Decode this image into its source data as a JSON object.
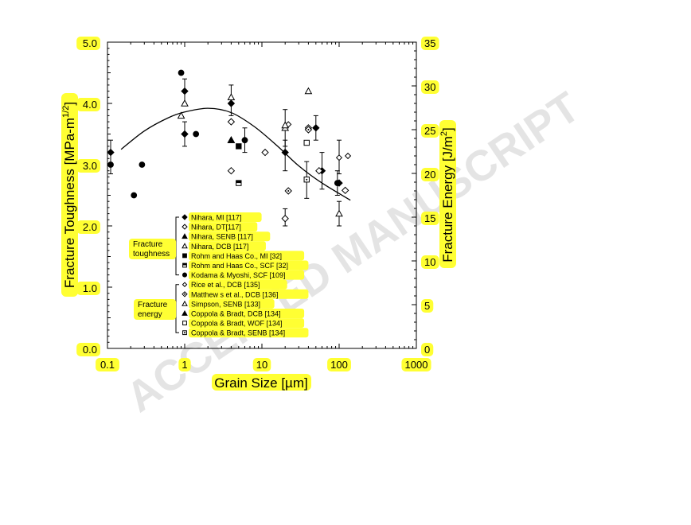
{
  "chart_data": {
    "type": "scatter",
    "xlabel": "Grain Size [µm]",
    "ylabel_left": "Fracture Toughness [MPa-m",
    "ylabel_left_sup": "1/2",
    "ylabel_left_end": "]",
    "ylabel_right": "Fracture Energy [J/m",
    "ylabel_right_sup": "2",
    "ylabel_right_end": "]",
    "x_scale": "log",
    "xlim": [
      0.1,
      1000
    ],
    "ylim_left": [
      0,
      5
    ],
    "ylim_right": [
      0,
      35
    ],
    "x_ticks": [
      "0.1",
      "1",
      "10",
      "100",
      "1000"
    ],
    "y_left_ticks": [
      "0.0",
      "1.0",
      "2.0",
      "3.0",
      "4.0",
      "5.0"
    ],
    "y_right_ticks": [
      "0",
      "5",
      "10",
      "15",
      "20",
      "25",
      "30",
      "35"
    ],
    "grid": false,
    "legend_position": "lower-left inside",
    "group_labels": [
      {
        "line1": "Fracture",
        "line2": "toughness"
      },
      {
        "line1": "Fracture",
        "line2": "energy"
      }
    ],
    "series": [
      {
        "name": "Nihara, MI [117]",
        "marker": "diamond-filled",
        "points": [
          [
            0.11,
            3.2
          ],
          [
            1.0,
            4.2
          ],
          [
            1.0,
            3.5
          ],
          [
            4.0,
            4.0
          ],
          [
            20,
            3.2
          ],
          [
            50,
            3.6
          ],
          [
            60,
            2.9
          ],
          [
            100,
            2.7
          ]
        ]
      },
      {
        "name": "Nihara, DT[117]",
        "marker": "diamond-open",
        "points": [
          [
            4.0,
            3.7
          ],
          [
            4.0,
            2.9
          ],
          [
            11,
            3.2
          ],
          [
            20,
            2.12
          ],
          [
            40,
            3.6
          ],
          [
            55,
            2.9
          ],
          [
            120,
            2.58
          ]
        ]
      },
      {
        "name": "Nihara, SENB [117]",
        "marker": "triangle-filled",
        "points": [
          [
            4.0,
            3.4
          ]
        ]
      },
      {
        "name": "Nihara, DCB [117]",
        "marker": "triangle-open",
        "points": [
          [
            0.9,
            3.8
          ],
          [
            1.0,
            4.0
          ],
          [
            4.0,
            4.1
          ],
          [
            20,
            3.6
          ],
          [
            40,
            4.2
          ],
          [
            100,
            2.2
          ]
        ]
      },
      {
        "name": "Rohm and Haas Co., MI [32]",
        "marker": "square-filled",
        "points": [
          [
            5.0,
            3.3
          ]
        ]
      },
      {
        "name": "Rohm and Haas Co., SCF [32]",
        "marker": "square-half",
        "points": [
          [
            5.0,
            2.7
          ]
        ]
      },
      {
        "name": "Kodama & Myoshi, SCF [109]",
        "marker": "circle-filled",
        "points": [
          [
            0.11,
            3.0
          ],
          [
            0.22,
            2.5
          ],
          [
            0.28,
            3.0
          ],
          [
            0.9,
            4.5
          ],
          [
            1.4,
            3.5
          ],
          [
            6,
            3.4
          ],
          [
            95,
            2.7
          ]
        ]
      },
      {
        "name": "Rice et al., DCB [135]",
        "marker": "diamond-open-small",
        "points": [
          [
            22,
            25.6
          ],
          [
            100,
            21.8
          ],
          [
            130,
            22.0
          ]
        ]
      },
      {
        "name": "Matthew s et al., DCB [136]",
        "marker": "diamond-dot",
        "points": [
          [
            22,
            18.0
          ],
          [
            40,
            25.0
          ]
        ]
      },
      {
        "name": "Simpson, SENB [133]",
        "marker": "triangle-open",
        "points": [
          [
            20,
            25.5
          ]
        ]
      },
      {
        "name": "Coppola & Bradt, DCB [134]",
        "marker": "triangle-filled",
        "points": [
          [
            4.0,
            23.8
          ]
        ]
      },
      {
        "name": "Coppola & Bradt, WOF [134]",
        "marker": "square-open",
        "points": [
          [
            38,
            23.5
          ]
        ]
      },
      {
        "name": "Coppola & Bradt, SENB [134]",
        "marker": "square-dot",
        "points": [
          [
            38,
            19.3
          ]
        ]
      }
    ],
    "fit_curve": {
      "style": "solid line",
      "peak_y": 3.92,
      "peak_x": 2.0,
      "points": [
        [
          0.15,
          3.25
        ],
        [
          0.3,
          3.55
        ],
        [
          0.6,
          3.76
        ],
        [
          1.0,
          3.86
        ],
        [
          2.0,
          3.92
        ],
        [
          4.0,
          3.85
        ],
        [
          8.0,
          3.62
        ],
        [
          16.0,
          3.3
        ],
        [
          30.0,
          2.98
        ],
        [
          60.0,
          2.7
        ],
        [
          140.0,
          2.42
        ]
      ]
    },
    "error_bars": [
      {
        "x": 0.11,
        "y": 3.2,
        "lo": 2.85,
        "hi": 3.4
      },
      {
        "x": 1.0,
        "y": 4.2,
        "lo": 4.0,
        "hi": 4.4
      },
      {
        "x": 1.0,
        "y": 3.5,
        "lo": 3.3,
        "hi": 3.7
      },
      {
        "x": 4.0,
        "y": 4.1,
        "lo": 3.8,
        "hi": 4.3
      },
      {
        "x": 6.0,
        "y": 3.4,
        "lo": 3.2,
        "hi": 3.6
      },
      {
        "x": 20.0,
        "y": 3.6,
        "lo": 3.3,
        "hi": 3.9
      },
      {
        "x": 20.0,
        "y": 3.2,
        "lo": 2.9,
        "hi": 3.4
      },
      {
        "x": 20.0,
        "y": 2.12,
        "lo": 2.0,
        "hi": 2.28
      },
      {
        "x": 38.0,
        "y": 2.75,
        "lo": 2.45,
        "hi": 3.05
      },
      {
        "x": 50.0,
        "y": 3.6,
        "lo": 3.4,
        "hi": 3.8
      },
      {
        "x": 60.0,
        "y": 2.9,
        "lo": 2.6,
        "hi": 3.2
      },
      {
        "x": 95.0,
        "y": 2.7,
        "lo": 2.5,
        "hi": 2.9
      },
      {
        "x": 100.0,
        "y": 3.1,
        "lo": 2.85,
        "hi": 3.4
      },
      {
        "x": 100.0,
        "y": 2.2,
        "lo": 2.0,
        "hi": 2.4
      }
    ],
    "watermark": "ACCEPTED MANUSCRIPT",
    "highlight_color": "#ffff33"
  }
}
